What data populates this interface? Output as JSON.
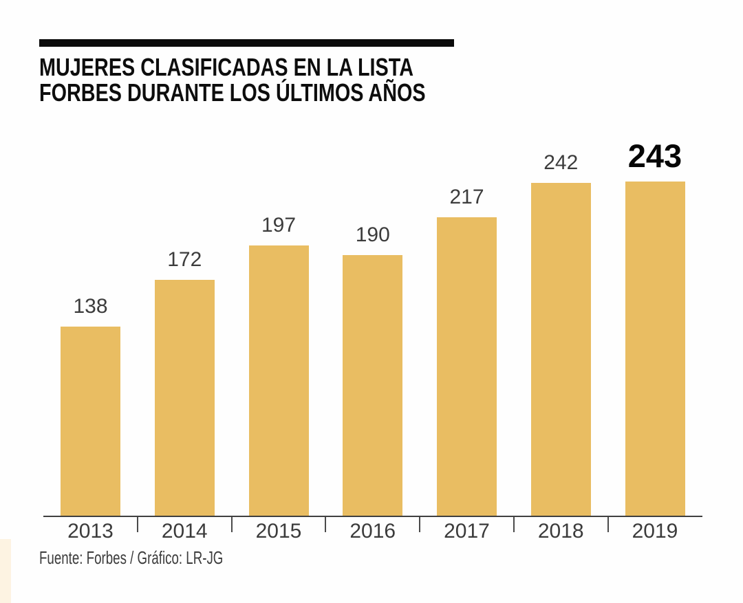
{
  "header": {
    "title_line1": "MUJERES CLASIFICADAS EN LA LISTA",
    "title_line2": "FORBES DURANTE LOS ÚLTIMOS AÑOS"
  },
  "footer": {
    "source": "Fuente: Forbes / Gráfico: LR-JG"
  },
  "colors": {
    "bar": "#e9bd62",
    "value_label": "#3c3c3c",
    "highlight_value_label": "#060606",
    "axis": "#3f3f3f",
    "title": "#0d0d0d",
    "title_rule": "#0b0b0b",
    "corner_strip": "#fdf3e2"
  },
  "chart_data": {
    "type": "bar",
    "categories": [
      "2013",
      "2014",
      "2015",
      "2016",
      "2017",
      "2018",
      "2019"
    ],
    "values": [
      138,
      172,
      197,
      190,
      217,
      242,
      243
    ],
    "title": "MUJERES CLASIFICADAS EN LA LISTA FORBES DURANTE LOS ÚLTIMOS AÑOS",
    "xlabel": "",
    "ylabel": "",
    "ylim": [
      0,
      260
    ],
    "grid": false,
    "legend": false,
    "value_labels_shown": true,
    "highlighted_index": 6,
    "bar_color": "#e9bd62"
  }
}
